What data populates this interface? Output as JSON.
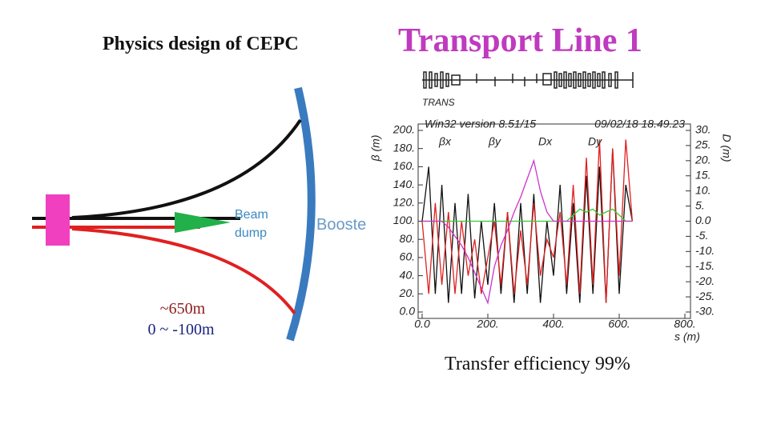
{
  "slide": {
    "title_left": "Physics design of CEPC",
    "title_right": "Transport Line 1",
    "caption": "Transfer efficiency 99%"
  },
  "diagram": {
    "beam_label_1": "Beam",
    "beam_label_2": "dump",
    "ring_label": "Booste",
    "length": "~650m",
    "height": "0 ~ -100m"
  },
  "lattice_label": "TRANS",
  "chart_data": {
    "type": "line",
    "title": "Win32 version 8.51/15",
    "subtitle": "09/02/18 18.49.23",
    "x_label": "s (m)",
    "y_label": "β (m)",
    "y2_label": "D (m)",
    "x": [
      0,
      20,
      40,
      60,
      80,
      100,
      120,
      140,
      160,
      180,
      200,
      220,
      240,
      260,
      280,
      300,
      320,
      340,
      360,
      380,
      400,
      420,
      440,
      460,
      480,
      500,
      520,
      540,
      560,
      580,
      600,
      620,
      640
    ],
    "series": [
      {
        "name": "βx",
        "color": "#111111",
        "values": [
          100,
          160,
          20,
          140,
          10,
          120,
          20,
          130,
          15,
          100,
          30,
          120,
          20,
          110,
          10,
          120,
          20,
          130,
          10,
          100,
          40,
          140,
          20,
          120,
          10,
          150,
          20,
          160,
          10,
          180,
          20,
          140,
          100
        ]
      },
      {
        "name": "βy",
        "color": "#e02020",
        "values": [
          100,
          20,
          120,
          30,
          110,
          20,
          100,
          40,
          80,
          20,
          60,
          100,
          30,
          110,
          20,
          90,
          30,
          120,
          40,
          80,
          60,
          110,
          30,
          140,
          20,
          170,
          30,
          190,
          10,
          180,
          40,
          190,
          100
        ]
      },
      {
        "name": "Dx",
        "color": "#33cc33",
        "axis": "y2",
        "values": [
          0,
          0,
          0,
          0,
          0,
          0,
          0,
          0,
          0,
          0,
          0,
          0,
          0,
          0,
          0,
          0,
          0,
          0,
          0,
          0,
          0,
          0,
          0,
          2,
          4,
          3,
          4,
          2,
          3,
          4,
          2,
          0,
          0
        ]
      },
      {
        "name": "Dy",
        "color": "#cc33cc",
        "axis": "y2",
        "values": [
          0,
          0,
          0,
          0,
          -2,
          -5,
          -8,
          -12,
          -17,
          -22,
          -27,
          -15,
          -8,
          -3,
          3,
          8,
          14,
          20,
          10,
          3,
          0,
          0,
          0,
          0,
          0,
          0,
          0,
          0,
          0,
          0,
          0,
          0,
          0
        ]
      }
    ],
    "xlim": [
      0,
      800
    ],
    "xticks": [
      {
        "value": 0,
        "label": "0.0"
      },
      {
        "value": 200,
        "label": "200."
      },
      {
        "value": 400,
        "label": "400."
      },
      {
        "value": 600,
        "label": "600."
      },
      {
        "value": 800,
        "label": "800."
      }
    ],
    "ylim": [
      0,
      200
    ],
    "yticks": [
      {
        "value": 0,
        "label": "0.0"
      },
      {
        "value": 20,
        "label": "20."
      },
      {
        "value": 40,
        "label": "40."
      },
      {
        "value": 60,
        "label": "60."
      },
      {
        "value": 80,
        "label": "80."
      },
      {
        "value": 100,
        "label": "100."
      },
      {
        "value": 120,
        "label": "120."
      },
      {
        "value": 140,
        "label": "140."
      },
      {
        "value": 160,
        "label": "160."
      },
      {
        "value": 180,
        "label": "180."
      },
      {
        "value": 200,
        "label": "200."
      }
    ],
    "y2lim": [
      -30,
      30
    ],
    "y2ticks": [
      {
        "value": -30,
        "label": "-30."
      },
      {
        "value": -25,
        "label": "-25."
      },
      {
        "value": -20,
        "label": "-20."
      },
      {
        "value": -15,
        "label": "-15."
      },
      {
        "value": -10,
        "label": "-10."
      },
      {
        "value": -5,
        "label": "-5."
      },
      {
        "value": 0,
        "label": "0.0"
      },
      {
        "value": 5,
        "label": "5."
      },
      {
        "value": 10,
        "label": "10."
      },
      {
        "value": 15,
        "label": "15."
      },
      {
        "value": 20,
        "label": "20."
      },
      {
        "value": 25,
        "label": "25."
      },
      {
        "value": 30,
        "label": "30."
      }
    ]
  }
}
